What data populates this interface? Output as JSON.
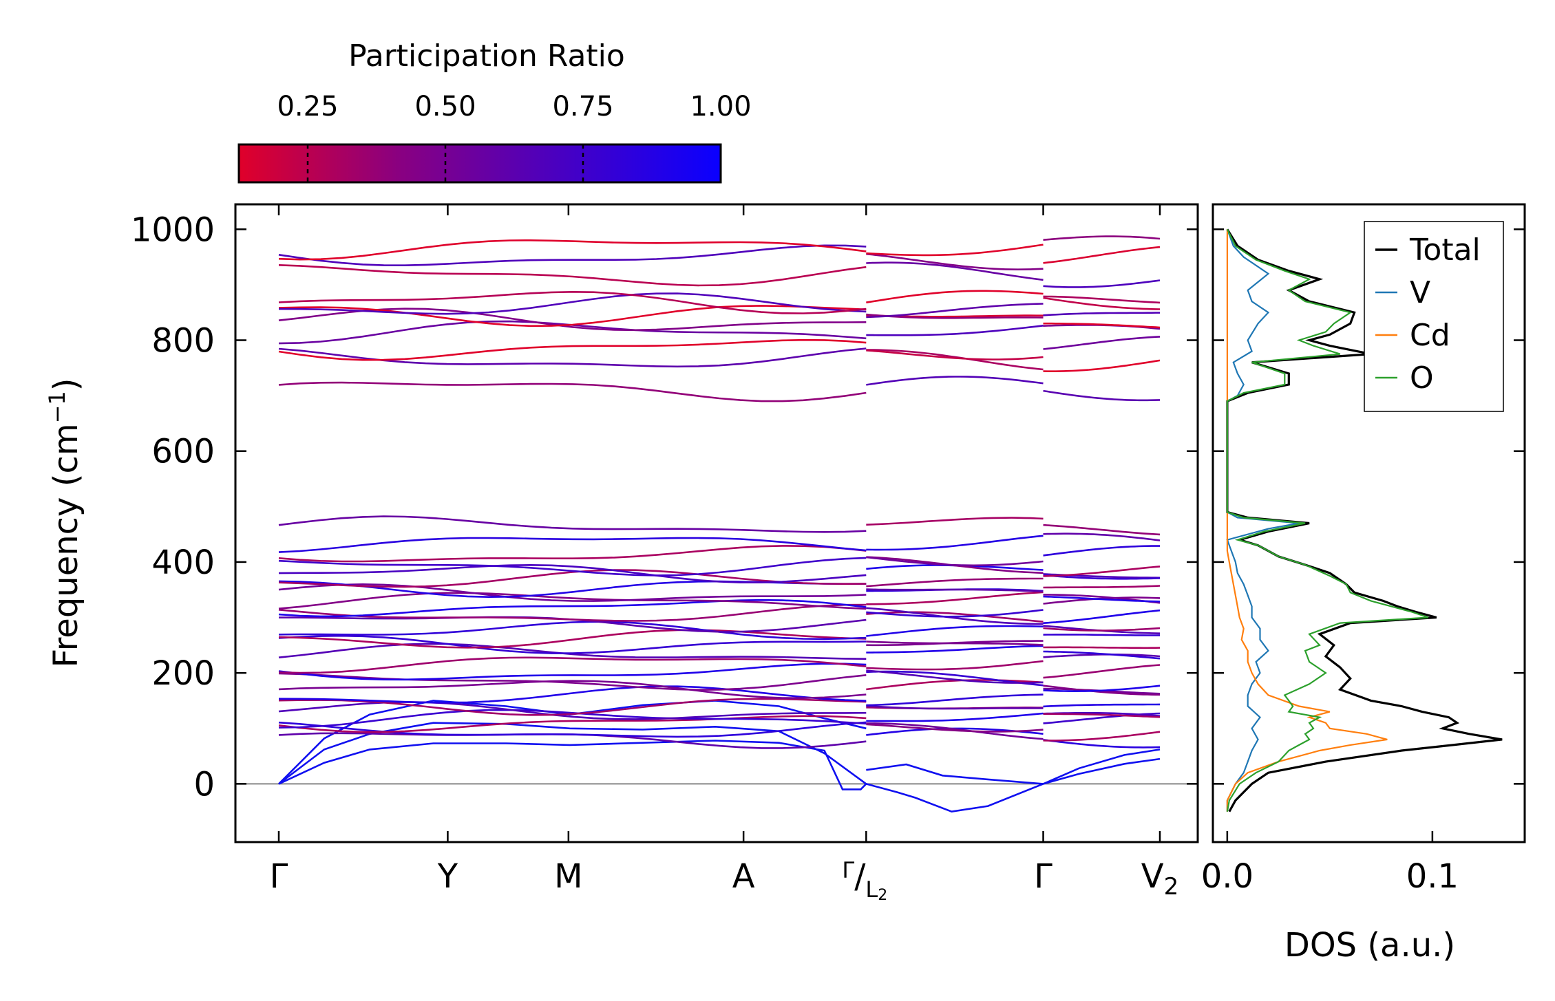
{
  "chart_data": [
    {
      "type": "line",
      "panel": "phonon band structure",
      "ylabel": "Frequency (cm$^{-1}$)",
      "ylabel_text": "Frequency (cm",
      "ylabel_exp": "−1",
      "ylabel_close": ")",
      "ylim": [
        -105,
        1045
      ],
      "yticks": [
        0,
        200,
        400,
        600,
        800,
        1000
      ],
      "xlabels": [
        {
          "main": "Γ",
          "sub": "",
          "pos": 0.0
        },
        {
          "main": "Y",
          "sub": "",
          "pos": 0.1858
        },
        {
          "main": "M",
          "sub": "",
          "pos": 0.3186
        },
        {
          "main": "A",
          "sub": "",
          "pos": 0.5111
        },
        {
          "main": "Γ",
          "sub": "",
          "pos": 0.646,
          "combined": "Γ/L₂",
          "second": "L",
          "second_sub": "2"
        },
        {
          "main": "Γ",
          "sub": "",
          "pos": 0.8407
        },
        {
          "main": "V",
          "sub": "2",
          "pos": 0.969
        }
      ],
      "segments": [
        [
          0.0,
          0.646
        ],
        [
          0.646,
          0.8407
        ],
        [
          0.8407,
          0.969
        ]
      ],
      "zero_line": 0,
      "acoustic": [
        [
          [
            0,
            0
          ],
          [
            0.05,
            38
          ],
          [
            0.1,
            62
          ],
          [
            0.17,
            73
          ],
          [
            0.25,
            73
          ],
          [
            0.32,
            70
          ],
          [
            0.4,
            74
          ],
          [
            0.48,
            78
          ],
          [
            0.55,
            74
          ],
          [
            0.6,
            60
          ],
          [
            0.62,
            -10
          ],
          [
            0.64,
            -10
          ],
          [
            0.646,
            0
          ]
        ],
        [
          [
            0,
            0
          ],
          [
            0.05,
            62
          ],
          [
            0.1,
            90
          ],
          [
            0.17,
            110
          ],
          [
            0.25,
            108
          ],
          [
            0.32,
            100
          ],
          [
            0.4,
            98
          ],
          [
            0.48,
            103
          ],
          [
            0.55,
            95
          ],
          [
            0.6,
            55
          ],
          [
            0.646,
            0
          ]
        ],
        [
          [
            0,
            0
          ],
          [
            0.05,
            82
          ],
          [
            0.1,
            125
          ],
          [
            0.17,
            150
          ],
          [
            0.25,
            140
          ],
          [
            0.32,
            125
          ],
          [
            0.4,
            142
          ],
          [
            0.48,
            150
          ],
          [
            0.55,
            140
          ],
          [
            0.6,
            118
          ],
          [
            0.646,
            100
          ]
        ],
        [
          [
            0.646,
            0
          ],
          [
            0.68,
            -15
          ],
          [
            0.7,
            -25
          ],
          [
            0.74,
            -50
          ],
          [
            0.78,
            -40
          ],
          [
            0.8407,
            0
          ]
        ],
        [
          [
            0.646,
            25
          ],
          [
            0.69,
            35
          ],
          [
            0.73,
            15
          ],
          [
            0.78,
            8
          ],
          [
            0.8407,
            0
          ]
        ],
        [
          [
            0.8407,
            0
          ],
          [
            0.88,
            28
          ],
          [
            0.93,
            52
          ],
          [
            0.969,
            62
          ]
        ],
        [
          [
            0.8407,
            0
          ],
          [
            0.88,
            18
          ],
          [
            0.93,
            36
          ],
          [
            0.969,
            45
          ]
        ]
      ],
      "optical_low": [
        82,
        95,
        110,
        118,
        130,
        142,
        158,
        172,
        185,
        200,
        218,
        235,
        252,
        262,
        275,
        292,
        305,
        318,
        330,
        342,
        355,
        368,
        380,
        392,
        412,
        435,
        465
      ],
      "optical_high": [
        712,
        765,
        785,
        815,
        835,
        848,
        862,
        870,
        918,
        950,
        968
      ],
      "colorbar": {
        "label": "Participation Ratio",
        "ticks": [
          "0.25",
          "0.50",
          "0.75",
          "1.00"
        ],
        "range": [
          0.125,
          1.0
        ],
        "colors": [
          "#e0002a",
          "#8a0080",
          "#4a00c0",
          "#0a00ff"
        ]
      }
    },
    {
      "type": "line",
      "panel": "density of states",
      "xlabel": "DOS (a.u.)",
      "xticks": [
        "0.0",
        "0.1"
      ],
      "xlim": [
        -0.007,
        0.145
      ],
      "ylim": [
        -105,
        1045
      ],
      "series": [
        {
          "name": "Total",
          "color": "#000000",
          "points": [
            [
              -50,
              0.001
            ],
            [
              -30,
              0.004
            ],
            [
              0,
              0.012
            ],
            [
              20,
              0.02
            ],
            [
              40,
              0.048
            ],
            [
              60,
              0.085
            ],
            [
              70,
              0.11
            ],
            [
              80,
              0.134
            ],
            [
              90,
              0.118
            ],
            [
              100,
              0.105
            ],
            [
              110,
              0.112
            ],
            [
              120,
              0.108
            ],
            [
              130,
              0.095
            ],
            [
              140,
              0.085
            ],
            [
              150,
              0.07
            ],
            [
              170,
              0.055
            ],
            [
              190,
              0.06
            ],
            [
              210,
              0.055
            ],
            [
              230,
              0.048
            ],
            [
              250,
              0.052
            ],
            [
              270,
              0.045
            ],
            [
              290,
              0.06
            ],
            [
              300,
              0.102
            ],
            [
              310,
              0.092
            ],
            [
              320,
              0.083
            ],
            [
              330,
              0.076
            ],
            [
              345,
              0.062
            ],
            [
              360,
              0.058
            ],
            [
              380,
              0.05
            ],
            [
              395,
              0.038
            ],
            [
              410,
              0.025
            ],
            [
              430,
              0.015
            ],
            [
              440,
              0.006
            ],
            [
              455,
              0.02
            ],
            [
              470,
              0.04
            ],
            [
              480,
              0.01
            ],
            [
              490,
              0.0
            ],
            [
              690,
              0.0
            ],
            [
              705,
              0.01
            ],
            [
              720,
              0.03
            ],
            [
              740,
              0.03
            ],
            [
              760,
              0.012
            ],
            [
              775,
              0.07
            ],
            [
              790,
              0.05
            ],
            [
              800,
              0.04
            ],
            [
              810,
              0.05
            ],
            [
              830,
              0.06
            ],
            [
              850,
              0.062
            ],
            [
              870,
              0.04
            ],
            [
              890,
              0.03
            ],
            [
              910,
              0.045
            ],
            [
              925,
              0.03
            ],
            [
              945,
              0.015
            ],
            [
              970,
              0.005
            ],
            [
              1000,
              0.0
            ]
          ]
        },
        {
          "name": "V",
          "color": "#1f77b4",
          "points": [
            [
              -50,
              0.0
            ],
            [
              -30,
              0.0
            ],
            [
              0,
              0.004
            ],
            [
              20,
              0.008
            ],
            [
              40,
              0.01
            ],
            [
              60,
              0.012
            ],
            [
              80,
              0.015
            ],
            [
              100,
              0.012
            ],
            [
              120,
              0.016
            ],
            [
              140,
              0.01
            ],
            [
              160,
              0.01
            ],
            [
              180,
              0.012
            ],
            [
              200,
              0.016
            ],
            [
              220,
              0.014
            ],
            [
              240,
              0.02
            ],
            [
              260,
              0.016
            ],
            [
              280,
              0.016
            ],
            [
              300,
              0.012
            ],
            [
              320,
              0.012
            ],
            [
              340,
              0.01
            ],
            [
              360,
              0.008
            ],
            [
              380,
              0.005
            ],
            [
              400,
              0.004
            ],
            [
              420,
              0.002
            ],
            [
              440,
              0.0
            ],
            [
              460,
              0.02
            ],
            [
              470,
              0.035
            ],
            [
              480,
              0.005
            ],
            [
              490,
              0.0
            ],
            [
              690,
              0.0
            ],
            [
              700,
              0.005
            ],
            [
              720,
              0.008
            ],
            [
              740,
              0.005
            ],
            [
              760,
              0.003
            ],
            [
              780,
              0.012
            ],
            [
              800,
              0.01
            ],
            [
              830,
              0.015
            ],
            [
              850,
              0.02
            ],
            [
              870,
              0.012
            ],
            [
              890,
              0.01
            ],
            [
              920,
              0.02
            ],
            [
              950,
              0.008
            ],
            [
              970,
              0.003
            ],
            [
              1000,
              0.0
            ]
          ]
        },
        {
          "name": "Cd",
          "color": "#ff7f0e",
          "points": [
            [
              -50,
              0.0
            ],
            [
              -30,
              0.0
            ],
            [
              0,
              0.004
            ],
            [
              20,
              0.01
            ],
            [
              40,
              0.025
            ],
            [
              60,
              0.045
            ],
            [
              70,
              0.06
            ],
            [
              80,
              0.078
            ],
            [
              90,
              0.068
            ],
            [
              100,
              0.05
            ],
            [
              110,
              0.048
            ],
            [
              120,
              0.04
            ],
            [
              130,
              0.05
            ],
            [
              140,
              0.035
            ],
            [
              160,
              0.02
            ],
            [
              180,
              0.015
            ],
            [
              200,
              0.012
            ],
            [
              220,
              0.01
            ],
            [
              240,
              0.01
            ],
            [
              260,
              0.007
            ],
            [
              280,
              0.008
            ],
            [
              300,
              0.006
            ],
            [
              320,
              0.005
            ],
            [
              340,
              0.004
            ],
            [
              360,
              0.003
            ],
            [
              380,
              0.002
            ],
            [
              400,
              0.001
            ],
            [
              420,
              0.0
            ],
            [
              1000,
              0.0
            ]
          ]
        },
        {
          "name": "O",
          "color": "#2ca02c",
          "points": [
            [
              -50,
              0.0
            ],
            [
              -30,
              0.001
            ],
            [
              0,
              0.006
            ],
            [
              20,
              0.014
            ],
            [
              40,
              0.025
            ],
            [
              60,
              0.03
            ],
            [
              70,
              0.035
            ],
            [
              80,
              0.04
            ],
            [
              90,
              0.038
            ],
            [
              100,
              0.042
            ],
            [
              110,
              0.04
            ],
            [
              120,
              0.045
            ],
            [
              130,
              0.03
            ],
            [
              140,
              0.032
            ],
            [
              160,
              0.028
            ],
            [
              180,
              0.04
            ],
            [
              200,
              0.048
            ],
            [
              220,
              0.04
            ],
            [
              240,
              0.038
            ],
            [
              250,
              0.045
            ],
            [
              270,
              0.04
            ],
            [
              290,
              0.055
            ],
            [
              300,
              0.098
            ],
            [
              310,
              0.09
            ],
            [
              320,
              0.08
            ],
            [
              330,
              0.07
            ],
            [
              345,
              0.06
            ],
            [
              360,
              0.058
            ],
            [
              375,
              0.05
            ],
            [
              395,
              0.038
            ],
            [
              410,
              0.025
            ],
            [
              430,
              0.015
            ],
            [
              440,
              0.005
            ],
            [
              455,
              0.018
            ],
            [
              470,
              0.038
            ],
            [
              480,
              0.008
            ],
            [
              490,
              0.0
            ],
            [
              690,
              0.0
            ],
            [
              705,
              0.008
            ],
            [
              720,
              0.028
            ],
            [
              740,
              0.028
            ],
            [
              760,
              0.012
            ],
            [
              775,
              0.055
            ],
            [
              790,
              0.042
            ],
            [
              800,
              0.035
            ],
            [
              815,
              0.048
            ],
            [
              830,
              0.052
            ],
            [
              850,
              0.06
            ],
            [
              870,
              0.038
            ],
            [
              890,
              0.03
            ],
            [
              910,
              0.04
            ],
            [
              925,
              0.028
            ],
            [
              945,
              0.014
            ],
            [
              970,
              0.004
            ],
            [
              1000,
              0.0
            ]
          ]
        }
      ],
      "legend_position": "top-right"
    }
  ]
}
